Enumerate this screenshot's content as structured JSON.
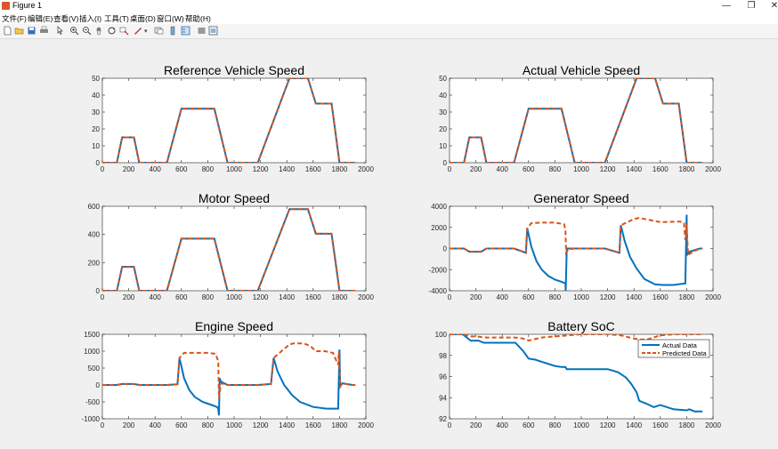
{
  "window": {
    "title": "Figure 1",
    "min_label": "—",
    "max_label": "❐",
    "close_label": "✕"
  },
  "menu": [
    "文件(F)",
    "编辑(E)",
    "查看(V)",
    "插入(I)",
    "工具(T)",
    "桌面(D)",
    "窗口(W)",
    "帮助(H)"
  ],
  "toolbar": {
    "icons": [
      "new-file-icon",
      "open-folder-icon",
      "save-icon",
      "print-icon",
      "pointer-icon",
      "zoom-in-icon",
      "zoom-out-icon",
      "pan-icon",
      "rotate-icon",
      "data-cursor-icon",
      "brush-icon",
      "link-icon",
      "colorbar-icon",
      "legend-icon",
      "hide-tools-icon",
      "show-tools-icon"
    ]
  },
  "colors": {
    "actual": "#0072bd",
    "predicted": "#d95319"
  },
  "chart_data": [
    {
      "type": "line",
      "title": "Reference Vehicle Speed",
      "xlim": [
        0,
        2000
      ],
      "ylim": [
        0,
        50
      ],
      "xticks": [
        0,
        200,
        400,
        600,
        800,
        1000,
        1200,
        1400,
        1600,
        1800,
        2000
      ],
      "yticks": [
        0,
        10,
        20,
        30,
        40,
        50
      ],
      "series": [
        {
          "color": "#0072bd",
          "dash": false,
          "x": [
            0,
            110,
            150,
            240,
            280,
            490,
            600,
            850,
            950,
            1180,
            1420,
            1490,
            1560,
            1620,
            1740,
            1800,
            1920
          ],
          "y": [
            0,
            0,
            15,
            15,
            0,
            0,
            32,
            32,
            0,
            0,
            50,
            50,
            50,
            35,
            35,
            0,
            0
          ]
        },
        {
          "color": "#d95319",
          "dash": true,
          "x": [
            0,
            110,
            150,
            240,
            280,
            490,
            600,
            850,
            950,
            1180,
            1420,
            1490,
            1560,
            1620,
            1740,
            1800,
            1920
          ],
          "y": [
            0,
            0,
            15,
            15,
            0,
            0,
            32,
            32,
            0,
            0,
            50,
            50,
            50,
            35,
            35,
            0,
            0
          ]
        }
      ]
    },
    {
      "type": "line",
      "title": "Actual Vehicle Speed",
      "xlim": [
        0,
        2000
      ],
      "ylim": [
        0,
        50
      ],
      "xticks": [
        0,
        200,
        400,
        600,
        800,
        1000,
        1200,
        1400,
        1600,
        1800,
        2000
      ],
      "yticks": [
        0,
        10,
        20,
        30,
        40,
        50
      ],
      "series": [
        {
          "color": "#0072bd",
          "dash": false,
          "x": [
            0,
            110,
            150,
            240,
            280,
            490,
            600,
            850,
            950,
            1180,
            1420,
            1490,
            1560,
            1620,
            1740,
            1800,
            1920
          ],
          "y": [
            0,
            0,
            15,
            15,
            0,
            0,
            32,
            32,
            0,
            0,
            50,
            50,
            50,
            35,
            35,
            0,
            0
          ]
        },
        {
          "color": "#d95319",
          "dash": true,
          "x": [
            0,
            110,
            150,
            240,
            280,
            490,
            600,
            850,
            950,
            1180,
            1420,
            1490,
            1560,
            1620,
            1740,
            1800,
            1920
          ],
          "y": [
            0,
            0,
            15,
            15,
            0,
            0,
            32,
            32,
            0,
            0,
            50,
            50,
            50,
            35,
            35,
            0,
            0
          ]
        }
      ]
    },
    {
      "type": "line",
      "title": "Motor Speed",
      "xlim": [
        0,
        2000
      ],
      "ylim": [
        0,
        600
      ],
      "xticks": [
        0,
        200,
        400,
        600,
        800,
        1000,
        1200,
        1400,
        1600,
        1800,
        2000
      ],
      "yticks": [
        0,
        200,
        400,
        600
      ],
      "series": [
        {
          "color": "#0072bd",
          "dash": false,
          "x": [
            0,
            110,
            150,
            240,
            280,
            490,
            600,
            850,
            950,
            1180,
            1420,
            1560,
            1620,
            1740,
            1800,
            1920
          ],
          "y": [
            0,
            0,
            170,
            170,
            0,
            0,
            370,
            370,
            0,
            0,
            580,
            580,
            405,
            405,
            0,
            0
          ]
        },
        {
          "color": "#d95319",
          "dash": true,
          "x": [
            0,
            110,
            150,
            240,
            280,
            490,
            600,
            850,
            950,
            1180,
            1420,
            1560,
            1620,
            1740,
            1800,
            1920
          ],
          "y": [
            0,
            0,
            170,
            170,
            0,
            0,
            370,
            370,
            0,
            0,
            580,
            580,
            405,
            405,
            0,
            0
          ]
        }
      ]
    },
    {
      "type": "line",
      "title": "Generator Speed",
      "xlim": [
        0,
        2000
      ],
      "ylim": [
        -4000,
        4000
      ],
      "xticks": [
        0,
        200,
        400,
        600,
        800,
        1000,
        1200,
        1400,
        1600,
        1800,
        2000
      ],
      "yticks": [
        -4000,
        -2000,
        0,
        2000,
        4000
      ],
      "series": [
        {
          "color": "#0072bd",
          "dash": false,
          "x": [
            0,
            110,
            150,
            240,
            280,
            490,
            580,
            590,
            620,
            660,
            700,
            750,
            800,
            850,
            880,
            882,
            890,
            950,
            1180,
            1290,
            1300,
            1330,
            1370,
            1420,
            1480,
            1560,
            1620,
            1700,
            1790,
            1800,
            1802,
            1820,
            1900,
            1920
          ],
          "y": [
            0,
            0,
            -300,
            -300,
            0,
            0,
            -400,
            1900,
            200,
            -1200,
            -2000,
            -2600,
            -2950,
            -3150,
            -3300,
            -4000,
            0,
            0,
            0,
            -400,
            2200,
            700,
            -800,
            -1900,
            -2900,
            -3400,
            -3450,
            -3450,
            -3300,
            3200,
            -600,
            -300,
            0,
            0
          ]
        },
        {
          "color": "#d95319",
          "dash": true,
          "x": [
            0,
            110,
            150,
            240,
            280,
            490,
            580,
            590,
            620,
            700,
            800,
            870,
            880,
            885,
            900,
            950,
            1180,
            1290,
            1300,
            1400,
            1440,
            1480,
            1600,
            1750,
            1780,
            1790,
            1800,
            1810,
            1850,
            1900,
            1920
          ],
          "y": [
            0,
            0,
            -300,
            -300,
            0,
            0,
            -400,
            1900,
            2400,
            2450,
            2450,
            2300,
            1700,
            -400,
            -100,
            0,
            0,
            -400,
            2200,
            2800,
            2900,
            2800,
            2500,
            2550,
            2400,
            800,
            2300,
            -600,
            -300,
            0,
            0
          ]
        }
      ]
    },
    {
      "type": "line",
      "title": "Engine Speed",
      "xlim": [
        0,
        2000
      ],
      "ylim": [
        -1000,
        1500
      ],
      "xticks": [
        0,
        200,
        400,
        600,
        800,
        1000,
        1200,
        1400,
        1600,
        1800,
        2000
      ],
      "yticks": [
        -1000,
        -500,
        0,
        500,
        1000,
        1500
      ],
      "series": [
        {
          "color": "#0072bd",
          "dash": false,
          "x": [
            0,
            110,
            150,
            240,
            280,
            490,
            570,
            585,
            620,
            660,
            700,
            760,
            820,
            870,
            880,
            885,
            890,
            900,
            950,
            1180,
            1280,
            1300,
            1330,
            1380,
            1440,
            1500,
            1600,
            1700,
            1790,
            1800,
            1805,
            1820,
            1900,
            1920
          ],
          "y": [
            0,
            0,
            30,
            30,
            0,
            0,
            20,
            800,
            200,
            -150,
            -350,
            -500,
            -580,
            -650,
            -700,
            -900,
            200,
            100,
            0,
            0,
            30,
            800,
            400,
            0,
            -300,
            -500,
            -650,
            -700,
            -700,
            1050,
            -50,
            50,
            0,
            0
          ]
        },
        {
          "color": "#d95319",
          "dash": true,
          "x": [
            0,
            110,
            150,
            240,
            280,
            490,
            570,
            585,
            620,
            700,
            800,
            860,
            880,
            885,
            900,
            950,
            1180,
            1280,
            1300,
            1330,
            1420,
            1450,
            1530,
            1580,
            1620,
            1690,
            1750,
            1790,
            1795,
            1805,
            1820,
            1900,
            1920
          ],
          "y": [
            0,
            0,
            30,
            30,
            0,
            0,
            20,
            800,
            950,
            950,
            950,
            920,
            700,
            -400,
            50,
            0,
            0,
            30,
            800,
            900,
            1200,
            1230,
            1230,
            1150,
            1000,
            1000,
            950,
            600,
            1000,
            -50,
            50,
            0,
            0
          ]
        }
      ]
    },
    {
      "type": "line",
      "title": "Battery SoC",
      "xlim": [
        0,
        2000
      ],
      "ylim": [
        92,
        100
      ],
      "xticks": [
        0,
        200,
        400,
        600,
        800,
        1000,
        1200,
        1400,
        1600,
        1800,
        2000
      ],
      "yticks": [
        92,
        94,
        96,
        98,
        100
      ],
      "legend": {
        "position": "top-right",
        "entries": [
          "Actual Data",
          "Predicted Data"
        ]
      },
      "series": [
        {
          "color": "#0072bd",
          "dash": false,
          "x": [
            0,
            100,
            160,
            220,
            260,
            500,
            560,
            600,
            650,
            700,
            800,
            850,
            880,
            890,
            950,
            1100,
            1200,
            1280,
            1340,
            1380,
            1420,
            1440,
            1500,
            1550,
            1600,
            1700,
            1800,
            1820,
            1860,
            1920
          ],
          "y": [
            100,
            100,
            99.4,
            99.4,
            99.2,
            99.2,
            98.4,
            97.7,
            97.6,
            97.4,
            97.0,
            96.9,
            96.9,
            96.7,
            96.7,
            96.7,
            96.7,
            96.4,
            95.9,
            95.3,
            94.5,
            93.7,
            93.4,
            93.1,
            93.3,
            92.9,
            92.8,
            92.9,
            92.7,
            92.7
          ]
        },
        {
          "color": "#d95319",
          "dash": true,
          "x": [
            0,
            100,
            160,
            200,
            280,
            500,
            560,
            600,
            700,
            800,
            900,
            1000,
            1100,
            1200,
            1300,
            1400,
            1450,
            1500,
            1600,
            1700,
            1800,
            1900,
            1920
          ],
          "y": [
            100,
            100,
            99.8,
            99.8,
            99.7,
            99.7,
            99.6,
            99.4,
            99.7,
            99.8,
            99.9,
            100,
            100,
            100,
            99.9,
            99.6,
            99.5,
            99.5,
            99.9,
            100,
            100,
            100,
            100
          ]
        }
      ]
    }
  ]
}
